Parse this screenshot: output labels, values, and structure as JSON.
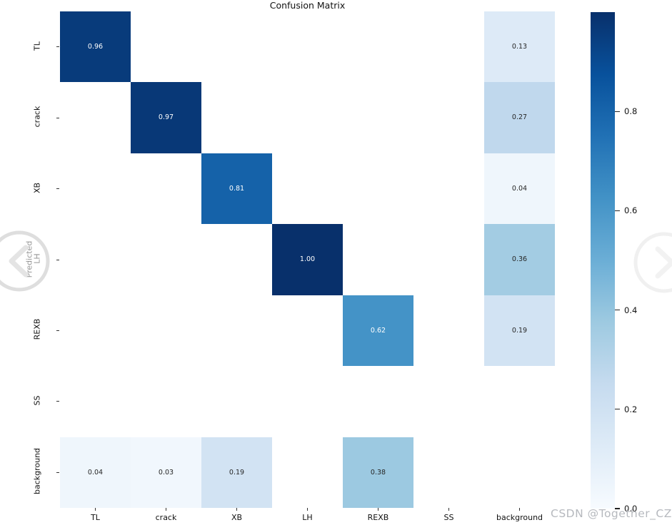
{
  "watermark": {
    "text": "CSDN @Together_CZ",
    "color": "#b6b9be"
  },
  "carousel": {
    "left_icon": "chevron-left-circle-icon",
    "right_icon": "chevron-right-circle-icon",
    "left_color": "#dedede",
    "right_color": "#f0f0f0"
  },
  "chart_data": {
    "type": "heatmap",
    "title": "Confusion Matrix",
    "xlabel": "",
    "ylabel": "Predicted",
    "x_categories": [
      "TL",
      "crack",
      "XB",
      "LH",
      "REXB",
      "SS",
      "background"
    ],
    "y_categories": [
      "TL",
      "crack",
      "XB",
      "LH",
      "REXB",
      "SS",
      "background"
    ],
    "matrix": [
      [
        0.96,
        null,
        null,
        null,
        null,
        null,
        0.13
      ],
      [
        null,
        0.97,
        null,
        null,
        null,
        null,
        0.27
      ],
      [
        null,
        null,
        0.81,
        null,
        null,
        null,
        0.04
      ],
      [
        null,
        null,
        null,
        1.0,
        null,
        null,
        0.36
      ],
      [
        null,
        null,
        null,
        null,
        0.62,
        null,
        0.19
      ],
      [
        null,
        null,
        null,
        null,
        null,
        null,
        null
      ],
      [
        0.04,
        0.03,
        0.19,
        null,
        0.38,
        null,
        null
      ]
    ],
    "annotation_decimals": 2,
    "masked_cells": "white",
    "grid": false,
    "legend": "colorbar-right",
    "colormap": {
      "name": "Blues",
      "stops": [
        [
          0.0,
          "#f7fbff"
        ],
        [
          0.125,
          "#deebf7"
        ],
        [
          0.25,
          "#c6dbef"
        ],
        [
          0.375,
          "#9ecae1"
        ],
        [
          0.5,
          "#6baed6"
        ],
        [
          0.625,
          "#4292c6"
        ],
        [
          0.75,
          "#2171b5"
        ],
        [
          0.875,
          "#08519c"
        ],
        [
          1.0,
          "#08306b"
        ]
      ]
    },
    "colorbar": {
      "vmin": 0.0,
      "vmax": 1.0,
      "ticks": [
        0.8,
        0.6,
        0.4,
        0.2,
        0.0
      ]
    },
    "annotation_text_dark": "#262626",
    "annotation_text_light": "#ffffff"
  }
}
